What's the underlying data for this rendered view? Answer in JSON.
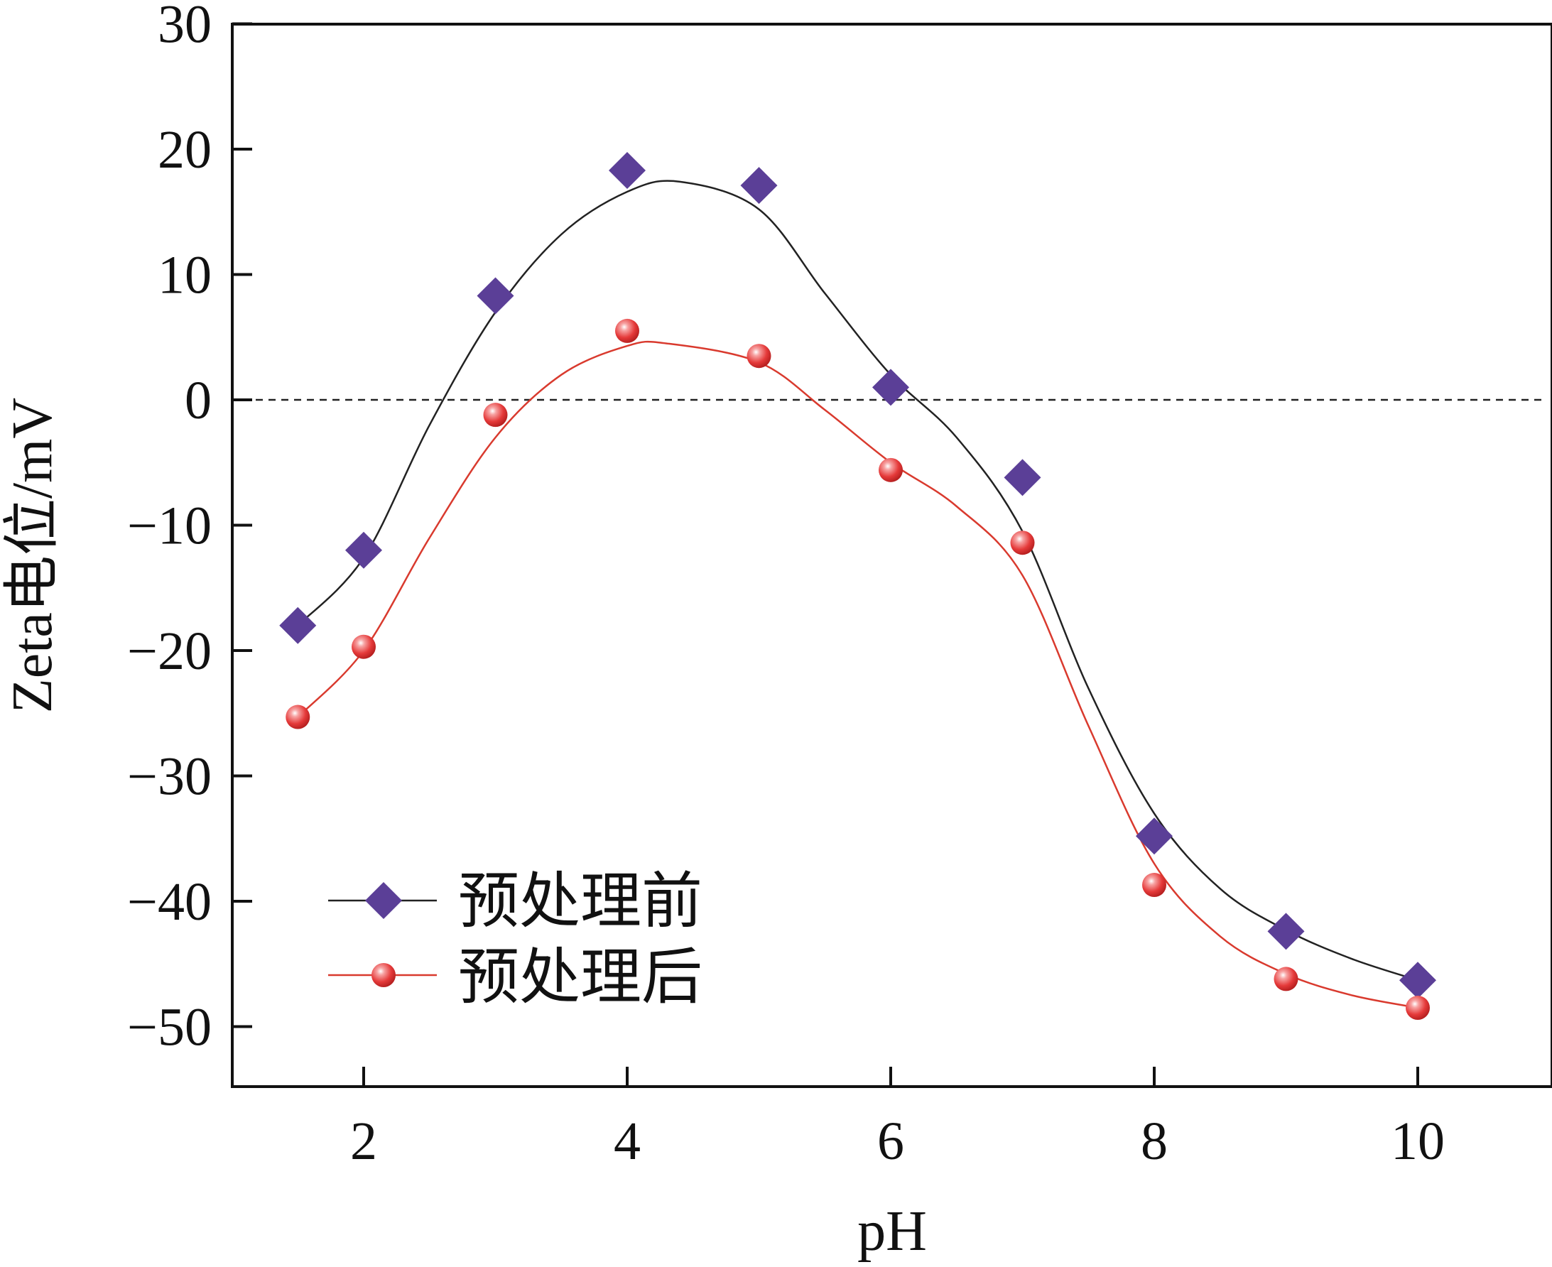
{
  "chart_data": {
    "type": "line",
    "title": "",
    "xlabel": "pH",
    "ylabel": "Zeta电位/mV",
    "xlim": [
      1,
      11
    ],
    "ylim": [
      -55,
      30
    ],
    "xticks": [
      2,
      4,
      6,
      8,
      10
    ],
    "yticks": [
      30,
      20,
      10,
      0,
      -10,
      -20,
      -30,
      -40,
      -50
    ],
    "x_tick_labels": [
      "2",
      "4",
      "6",
      "8",
      "10"
    ],
    "y_tick_labels": [
      "30",
      "20",
      "10",
      "0",
      "−10",
      "−20",
      "−30",
      "−40",
      "−50"
    ],
    "reference_line": {
      "y": 0,
      "style": "dashed"
    },
    "grid": false,
    "legend": {
      "position": "bottom-left"
    },
    "series": [
      {
        "name": "预处理前",
        "marker": "diamond",
        "marker_color": "#5b3f97",
        "line_color": "#222222",
        "points": [
          {
            "x": 1.5,
            "y": -18.0
          },
          {
            "x": 2,
            "y": -12.0
          },
          {
            "x": 3,
            "y": 8.3
          },
          {
            "x": 4,
            "y": 18.3
          },
          {
            "x": 5,
            "y": 17.1
          },
          {
            "x": 6,
            "y": 1.0
          },
          {
            "x": 7,
            "y": -6.2
          },
          {
            "x": 8,
            "y": -34.8
          },
          {
            "x": 9,
            "y": -42.4
          },
          {
            "x": 10,
            "y": -46.3
          }
        ],
        "fit": [
          {
            "x": 1.5,
            "y": -18.0
          },
          {
            "x": 2,
            "y": -12.6
          },
          {
            "x": 2.5,
            "y": -2.0
          },
          {
            "x": 3,
            "y": 7.0
          },
          {
            "x": 3.5,
            "y": 13.2
          },
          {
            "x": 4,
            "y": 16.6
          },
          {
            "x": 4.4,
            "y": 17.4
          },
          {
            "x": 5,
            "y": 15.2
          },
          {
            "x": 5.5,
            "y": 8.5
          },
          {
            "x": 6,
            "y": 2.0
          },
          {
            "x": 6.5,
            "y": -3.0
          },
          {
            "x": 7,
            "y": -10.5
          },
          {
            "x": 7.5,
            "y": -23.0
          },
          {
            "x": 8,
            "y": -33.0
          },
          {
            "x": 8.5,
            "y": -39.0
          },
          {
            "x": 9,
            "y": -42.3
          },
          {
            "x": 9.5,
            "y": -44.6
          },
          {
            "x": 10,
            "y": -46.3
          }
        ]
      },
      {
        "name": "预处理后",
        "marker": "sphere",
        "marker_color": "#e53a3a",
        "line_color": "#d93a2e",
        "points": [
          {
            "x": 1.5,
            "y": -25.3
          },
          {
            "x": 2,
            "y": -19.7
          },
          {
            "x": 3,
            "y": -1.2
          },
          {
            "x": 4,
            "y": 5.5
          },
          {
            "x": 5,
            "y": 3.5
          },
          {
            "x": 6,
            "y": -5.6
          },
          {
            "x": 7,
            "y": -11.4
          },
          {
            "x": 8,
            "y": -38.7
          },
          {
            "x": 9,
            "y": -46.2
          },
          {
            "x": 10,
            "y": -48.5
          }
        ],
        "fit": [
          {
            "x": 1.5,
            "y": -25.3
          },
          {
            "x": 2,
            "y": -20.0
          },
          {
            "x": 2.5,
            "y": -11.0
          },
          {
            "x": 3,
            "y": -3.0
          },
          {
            "x": 3.5,
            "y": 2.0
          },
          {
            "x": 4,
            "y": 4.3
          },
          {
            "x": 4.3,
            "y": 4.5
          },
          {
            "x": 5,
            "y": 3.0
          },
          {
            "x": 5.5,
            "y": -0.8
          },
          {
            "x": 6,
            "y": -5.0
          },
          {
            "x": 6.5,
            "y": -8.5
          },
          {
            "x": 7,
            "y": -14.0
          },
          {
            "x": 7.5,
            "y": -26.0
          },
          {
            "x": 8,
            "y": -37.0
          },
          {
            "x": 8.5,
            "y": -42.8
          },
          {
            "x": 9,
            "y": -45.8
          },
          {
            "x": 9.5,
            "y": -47.5
          },
          {
            "x": 10,
            "y": -48.5
          }
        ]
      }
    ]
  }
}
